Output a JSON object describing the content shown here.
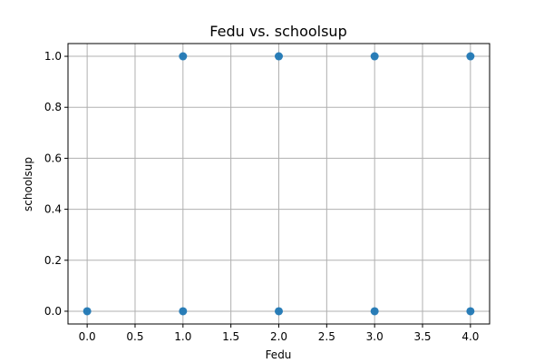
{
  "chart_data": {
    "type": "scatter",
    "title": "Fedu vs. schoolsup",
    "xlabel": "Fedu",
    "ylabel": "schoolsup",
    "xlim": [
      -0.2,
      4.2
    ],
    "ylim": [
      -0.05,
      1.05
    ],
    "xticks": [
      0.0,
      0.5,
      1.0,
      1.5,
      2.0,
      2.5,
      3.0,
      3.5,
      4.0
    ],
    "xtick_labels": [
      "0.0",
      "0.5",
      "1.0",
      "1.5",
      "2.0",
      "2.5",
      "3.0",
      "3.5",
      "4.0"
    ],
    "yticks": [
      0.0,
      0.2,
      0.4,
      0.6,
      0.8,
      1.0
    ],
    "ytick_labels": [
      "0.0",
      "0.2",
      "0.4",
      "0.6",
      "0.8",
      "1.0"
    ],
    "grid": true,
    "legend": "none",
    "point_color": "#1f77b4",
    "points": [
      {
        "x": 0,
        "y": 0
      },
      {
        "x": 1,
        "y": 0
      },
      {
        "x": 1,
        "y": 1
      },
      {
        "x": 2,
        "y": 0
      },
      {
        "x": 2,
        "y": 1
      },
      {
        "x": 3,
        "y": 0
      },
      {
        "x": 3,
        "y": 1
      },
      {
        "x": 4,
        "y": 0
      },
      {
        "x": 4,
        "y": 1
      }
    ]
  }
}
